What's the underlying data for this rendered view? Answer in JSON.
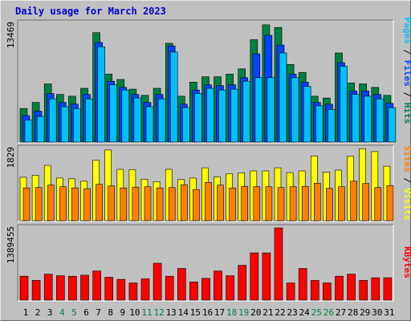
{
  "chart_data": {
    "type": "bar",
    "title": "Daily usage for March 2023",
    "categories": [
      "1",
      "2",
      "3",
      "4",
      "5",
      "6",
      "7",
      "8",
      "9",
      "10",
      "11",
      "12",
      "13",
      "14",
      "15",
      "16",
      "17",
      "18",
      "19",
      "20",
      "21",
      "22",
      "23",
      "24",
      "25",
      "26",
      "27",
      "28",
      "29",
      "30",
      "31"
    ],
    "weekend_days": [
      "4",
      "5",
      "11",
      "12",
      "18",
      "19",
      "25",
      "26"
    ],
    "grid": false,
    "panels": [
      {
        "name": "hits-files-pages",
        "ymax_label": "13469",
        "ylim": [
          0,
          13469
        ],
        "right_label": [
          {
            "text": "Pages",
            "color": "#00c0ff"
          },
          {
            "text": " / ",
            "color": "#000000"
          },
          {
            "text": "Files",
            "color": "#0044ff"
          },
          {
            "text": " / ",
            "color": "#000000"
          },
          {
            "text": "Hits",
            "color": "#008040"
          }
        ],
        "series": [
          {
            "name": "Hits",
            "color": "#008040",
            "values": [
              3800,
              4500,
              6600,
              5400,
              5200,
              6100,
              12400,
              7700,
              7100,
              6000,
              5300,
              6100,
              11200,
              5200,
              6800,
              7400,
              7400,
              7700,
              8300,
              11600,
              13300,
              13000,
              8800,
              7900,
              5200,
              5000,
              10100,
              6700,
              6600,
              6200,
              5300
            ]
          },
          {
            "name": "Files",
            "color": "#0044ff",
            "values": [
              3000,
              3500,
              5500,
              4500,
              4300,
              5400,
              11300,
              6900,
              6200,
              5400,
              4500,
              5400,
              10900,
              4300,
              5900,
              6500,
              6400,
              6500,
              7300,
              10000,
              12100,
              11000,
              7700,
              6800,
              4500,
              4300,
              9000,
              5800,
              5800,
              5400,
              4400
            ]
          },
          {
            "name": "Pages",
            "color": "#00c0ff",
            "values": [
              2500,
              2900,
              4900,
              4000,
              3800,
              4900,
              10800,
              6500,
              5900,
              5000,
              4000,
              4900,
              10200,
              3900,
              5500,
              6100,
              5900,
              6000,
              6900,
              7300,
              7300,
              10100,
              7300,
              6300,
              4100,
              3700,
              8600,
              5400,
              5200,
              4900,
              3900
            ]
          }
        ]
      },
      {
        "name": "visits-sites",
        "ymax_label": "1829",
        "ylim": [
          0,
          1829
        ],
        "right_label": [
          {
            "text": "Sites",
            "color": "#ff8000"
          },
          {
            "text": " / ",
            "color": "#000000"
          },
          {
            "text": "Visits",
            "color": "#ffff00"
          }
        ],
        "series": [
          {
            "name": "Visits",
            "color": "#ffff00",
            "values": [
              1100,
              1150,
              1400,
              1080,
              1060,
              1000,
              1530,
              1790,
              1300,
              1290,
              1050,
              990,
              1300,
              1040,
              1080,
              1340,
              1110,
              1190,
              1210,
              1260,
              1260,
              1340,
              1220,
              1260,
              1640,
              1230,
              1280,
              1630,
              1820,
              1750,
              1380
            ]
          },
          {
            "name": "Sites",
            "color": "#ff8000",
            "values": [
              830,
              840,
              900,
              860,
              830,
              810,
              920,
              880,
              830,
              850,
              860,
              830,
              840,
              910,
              790,
              970,
              900,
              830,
              870,
              860,
              860,
              840,
              860,
              870,
              950,
              820,
              860,
              1000,
              940,
              840,
              890
            ]
          }
        ]
      },
      {
        "name": "kbytes",
        "ymax_label": "1389455",
        "ylim": [
          0,
          1389455
        ],
        "right_label": [
          {
            "text": "KBytes",
            "color": "#ff0000"
          }
        ],
        "series": [
          {
            "name": "KBytes",
            "color": "#ff0000",
            "values": [
              460000,
              380000,
              500000,
              470000,
              460000,
              480000,
              560000,
              440000,
              400000,
              330000,
              410000,
              710000,
              460000,
              610000,
              350000,
              420000,
              560000,
              470000,
              670000,
              910000,
              910000,
              1389455,
              330000,
              610000,
              380000,
              330000,
              460000,
              500000,
              380000,
              430000,
              430000
            ]
          }
        ]
      }
    ]
  }
}
